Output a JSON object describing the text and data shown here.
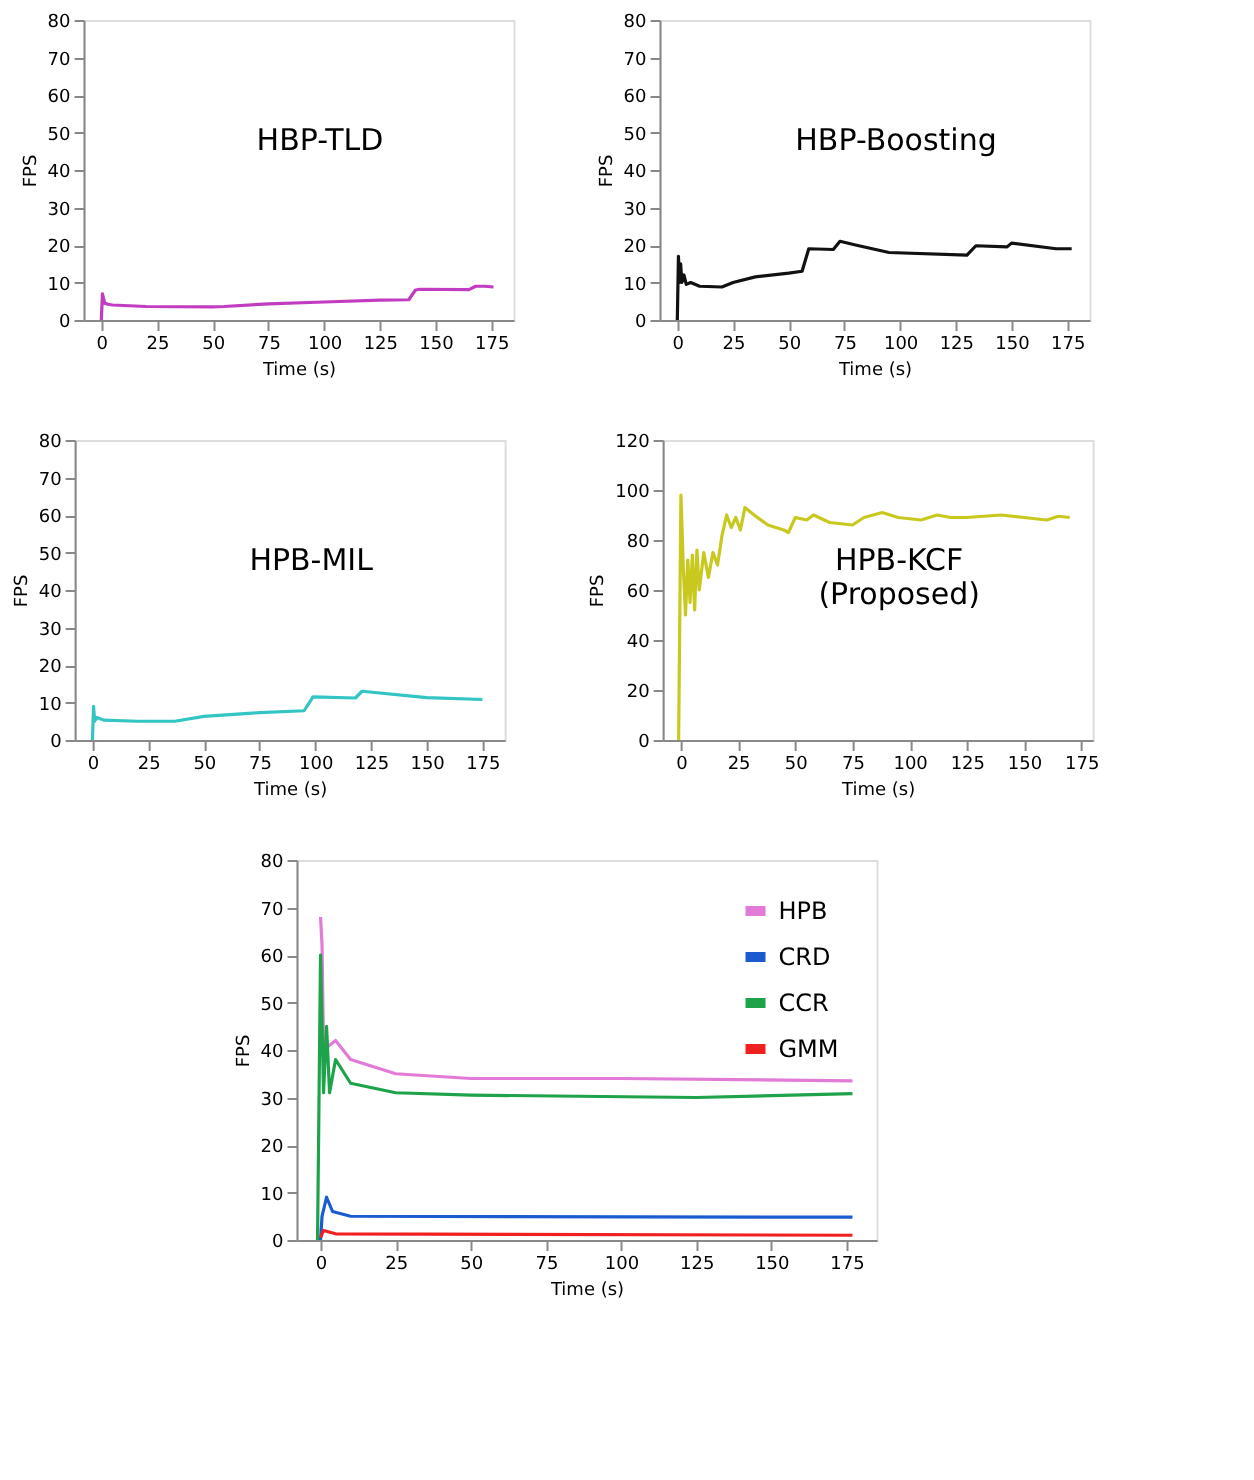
{
  "chart_data": [
    {
      "type": "line",
      "annotations": [
        "HBP-TLD"
      ],
      "xlabel": "Time (s)",
      "ylabel": "FPS",
      "xlim": [
        -8,
        185
      ],
      "xticks": [
        0,
        25,
        50,
        75,
        100,
        125,
        150,
        175
      ],
      "ylim": [
        0,
        80
      ],
      "yticks": [
        0,
        10,
        20,
        30,
        40,
        50,
        60,
        70,
        80
      ],
      "grid": false,
      "legend": false,
      "series": [
        {
          "color": "#c23cc2",
          "x": [
            0,
            0.5,
            1.5,
            3,
            5,
            20,
            50,
            55,
            75,
            100,
            125,
            138,
            141,
            143,
            165,
            168,
            172,
            176
          ],
          "values": [
            0,
            7,
            4.5,
            4.2,
            4,
            3.6,
            3.5,
            3.6,
            4.3,
            4.8,
            5.3,
            5.4,
            8,
            8.2,
            8.1,
            9,
            9,
            8.8
          ]
        }
      ]
    },
    {
      "type": "line",
      "annotations": [
        "HBP-Boosting"
      ],
      "xlabel": "Time (s)",
      "ylabel": "FPS",
      "xlim": [
        -8,
        185
      ],
      "xticks": [
        0,
        25,
        50,
        75,
        100,
        125,
        150,
        175
      ],
      "ylim": [
        0,
        80
      ],
      "yticks": [
        0,
        10,
        20,
        30,
        40,
        50,
        60,
        70,
        80
      ],
      "grid": false,
      "legend": false,
      "series": [
        {
          "color": "#111111",
          "x": [
            0,
            0.5,
            1,
            1.5,
            2,
            3,
            4,
            6,
            10,
            20,
            25,
            35,
            50,
            56,
            59,
            70,
            73,
            80,
            95,
            130,
            134,
            148,
            150,
            170,
            177
          ],
          "values": [
            0,
            17,
            10,
            15,
            10,
            12,
            9.5,
            10,
            9,
            8.8,
            10,
            11.5,
            12.5,
            13,
            19,
            18.8,
            21,
            20,
            18,
            17.3,
            19.8,
            19.5,
            20.5,
            19,
            19
          ]
        }
      ]
    },
    {
      "type": "line",
      "annotations": [
        "HPB-MIL"
      ],
      "xlabel": "Time (s)",
      "ylabel": "FPS",
      "xlim": [
        -8,
        185
      ],
      "xticks": [
        0,
        25,
        50,
        75,
        100,
        125,
        150,
        175
      ],
      "ylim": [
        0,
        80
      ],
      "yticks": [
        0,
        10,
        20,
        30,
        40,
        50,
        60,
        70,
        80
      ],
      "grid": false,
      "legend": false,
      "series": [
        {
          "color": "#33c4c4",
          "x": [
            0,
            0.5,
            1,
            2,
            5,
            20,
            37,
            50,
            75,
            95,
            99,
            118,
            121,
            150,
            175
          ],
          "values": [
            0,
            9,
            5,
            6,
            5.3,
            5,
            5,
            6.3,
            7.3,
            7.8,
            11.5,
            11.2,
            13,
            11.3,
            10.8
          ]
        }
      ]
    },
    {
      "type": "line",
      "annotations": [
        "HPB-KCF\n(Proposed)"
      ],
      "xlabel": "Time (s)",
      "ylabel": "FPS",
      "xlim": [
        -8,
        180
      ],
      "xticks": [
        0,
        25,
        50,
        75,
        100,
        125,
        150,
        175
      ],
      "ylim": [
        0,
        120
      ],
      "yticks": [
        0,
        20,
        40,
        60,
        80,
        100,
        120
      ],
      "grid": false,
      "legend": false,
      "series": [
        {
          "color": "#c8c81e",
          "x": [
            -1,
            0,
            1,
            2,
            3,
            4,
            5,
            6,
            7,
            8,
            10,
            12,
            14,
            16,
            18,
            20,
            22,
            24,
            26,
            28,
            32,
            38,
            45,
            47,
            50,
            55,
            58,
            65,
            75,
            80,
            88,
            95,
            105,
            112,
            118,
            125,
            140,
            150,
            160,
            165,
            170
          ],
          "values": [
            0,
            98,
            70,
            50,
            72,
            55,
            74,
            52,
            76,
            60,
            75,
            65,
            75,
            70,
            82,
            90,
            85,
            89,
            84,
            93,
            90,
            86,
            84,
            83,
            89,
            88,
            90,
            87,
            86,
            89,
            91,
            89,
            88,
            90,
            89,
            89,
            90,
            89,
            88,
            89.5,
            89
          ]
        }
      ]
    },
    {
      "type": "line",
      "xlabel": "Time (s)",
      "ylabel": "FPS",
      "xlim": [
        -8,
        185
      ],
      "xticks": [
        0,
        25,
        50,
        75,
        100,
        125,
        150,
        175
      ],
      "ylim": [
        0,
        80
      ],
      "yticks": [
        0,
        10,
        20,
        30,
        40,
        50,
        60,
        70,
        80
      ],
      "grid": false,
      "legend": "top right",
      "series": [
        {
          "name": "HPB",
          "color": "#e27ad8",
          "x": [
            0,
            0.5,
            1,
            5,
            10,
            25,
            50,
            100,
            177
          ],
          "values": [
            68,
            62,
            40,
            42,
            38,
            35,
            34,
            34,
            33.5
          ]
        },
        {
          "name": "CRD",
          "color": "#1a5cd0",
          "x": [
            0,
            0.5,
            2,
            4,
            10,
            177
          ],
          "values": [
            0,
            5,
            9,
            6,
            5,
            4.8
          ]
        },
        {
          "name": "CCR",
          "color": "#1fa34a",
          "x": [
            -1,
            0,
            1,
            2,
            3,
            5,
            10,
            25,
            50,
            125,
            177
          ],
          "values": [
            0,
            60,
            31,
            45,
            31,
            38,
            33,
            31,
            30.5,
            30,
            30.8
          ]
        },
        {
          "name": "GMM",
          "color": "#f02020",
          "x": [
            0,
            1,
            5,
            177
          ],
          "values": [
            0.5,
            2,
            1.3,
            1
          ]
        }
      ]
    }
  ]
}
